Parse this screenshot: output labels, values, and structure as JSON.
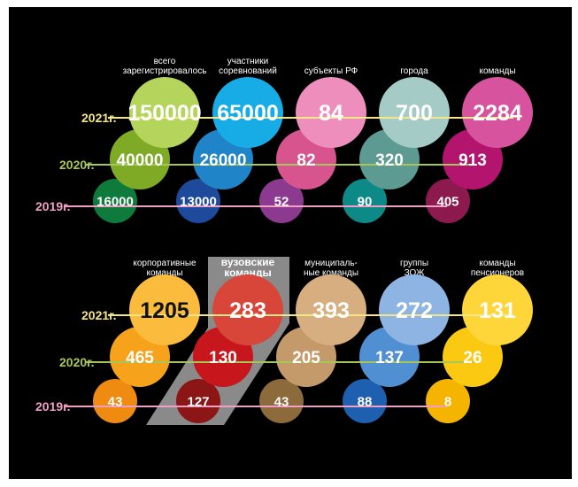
{
  "panels": [
    {
      "columns": [
        {
          "header": [
            "всего",
            "зарегистрировалось"
          ],
          "values": {
            "2021": "150000",
            "2020": "40000",
            "2019": "16000"
          },
          "colors": {
            "2021": "#b5d45c",
            "2020": "#7eaa25",
            "2019": "#0e7a3c"
          }
        },
        {
          "header": [
            "участники",
            "соревнований"
          ],
          "values": {
            "2021": "65000",
            "2020": "26000",
            "2019": "13000"
          },
          "colors": {
            "2021": "#18ace6",
            "2020": "#1f84c8",
            "2019": "#1e4a9c"
          }
        },
        {
          "header": [
            "субъекты РФ"
          ],
          "values": {
            "2021": "84",
            "2020": "82",
            "2019": "52"
          },
          "colors": {
            "2021": "#ee8ebd",
            "2020": "#d8548f",
            "2019": "#8b3a8f"
          }
        },
        {
          "header": [
            "города"
          ],
          "values": {
            "2021": "700",
            "2020": "320",
            "2019": "90"
          },
          "colors": {
            "2021": "#a4cbc6",
            "2020": "#5c9a92",
            "2019": "#0d8a88"
          }
        },
        {
          "header": [
            "команды"
          ],
          "values": {
            "2021": "2284",
            "2020": "913",
            "2019": "405"
          },
          "colors": {
            "2021": "#d8539e",
            "2020": "#b3156e",
            "2019": "#8c1a4e"
          }
        }
      ]
    },
    {
      "columns": [
        {
          "header": [
            "корпоративные",
            "команды"
          ],
          "values": {
            "2021": "1205",
            "2020": "465",
            "2019": "43"
          },
          "colors": {
            "2021": "#fbbc3e",
            "2020": "#f6a21b",
            "2019": "#ef8b11"
          }
        },
        {
          "header": [
            "вузовские",
            "команды"
          ],
          "highlight": true,
          "values": {
            "2021": "283",
            "2020": "130",
            "2019": "127"
          },
          "colors": {
            "2021": "#d8463a",
            "2020": "#c8171c",
            "2019": "#8c1515"
          }
        },
        {
          "header": [
            "муниципаль-",
            "ные команды"
          ],
          "values": {
            "2021": "393",
            "2020": "205",
            "2019": "43"
          },
          "colors": {
            "2021": "#d6ae80",
            "2020": "#c49a6a",
            "2019": "#8c6a3c"
          }
        },
        {
          "header": [
            "группы",
            "ЗОЖ"
          ],
          "values": {
            "2021": "272",
            "2020": "137",
            "2019": "88"
          },
          "colors": {
            "2021": "#8eb4e4",
            "2020": "#4f8fd2",
            "2019": "#1f5fb0"
          }
        },
        {
          "header": [
            "команды",
            "пенсионеров"
          ],
          "values": {
            "2021": "131",
            "2020": "26",
            "2019": "8"
          },
          "colors": {
            "2021": "#fed63a",
            "2020": "#fcc912",
            "2019": "#f4b400"
          }
        }
      ]
    }
  ],
  "years": [
    {
      "key": "2021",
      "label": "2021г.",
      "color": "#f2e58a"
    },
    {
      "key": "2020",
      "label": "2020г.",
      "color": "#a7c65a"
    },
    {
      "key": "2019",
      "label": "2019г.",
      "color": "#f0a0c4"
    }
  ],
  "colors": {
    "background": "#000000",
    "highlight_box": "#8a8a8a",
    "text": "#ffffff"
  }
}
